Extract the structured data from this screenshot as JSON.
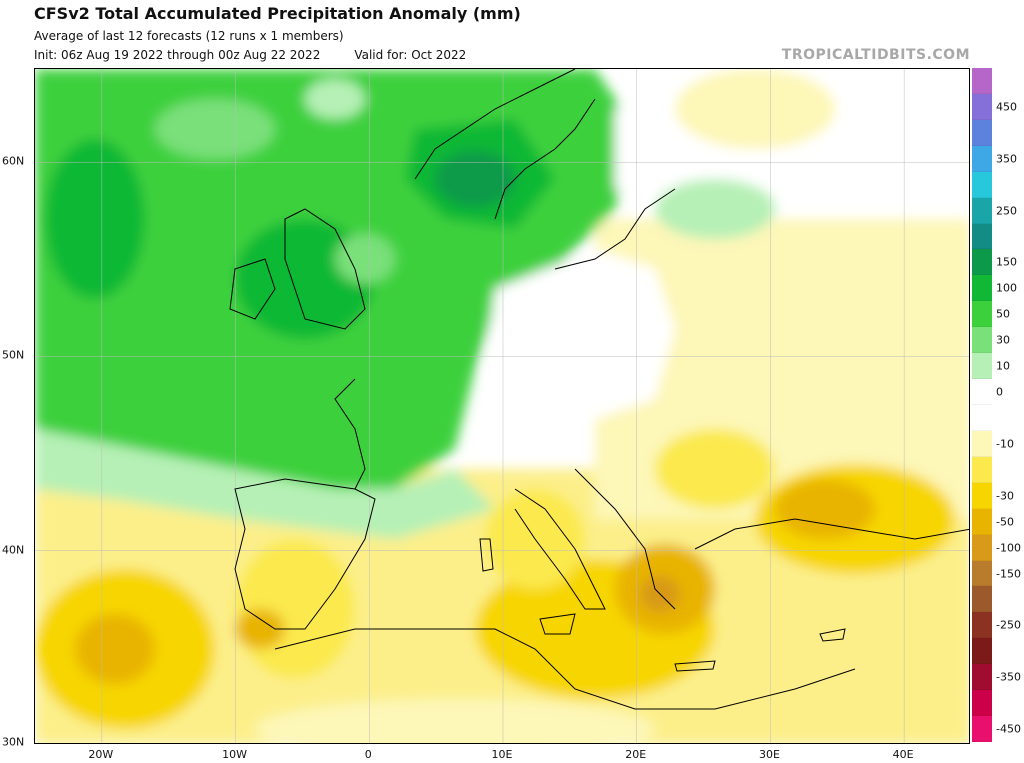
{
  "header": {
    "title": "CFSv2 Total Accumulated Precipitation Anomaly (mm)",
    "subtitle": "Average of last 12 forecasts (12 runs x 1 members)",
    "init": "Init: 06z Aug 19 2022 through 00z Aug 22 2022",
    "valid": "Valid for: Oct 2022",
    "brand": "TROPICALTIDBITS.COM"
  },
  "map": {
    "projection": "equirectangular",
    "lon_range": [
      -25,
      45
    ],
    "lat_range": [
      30,
      64.8
    ],
    "lat_ticks": [
      {
        "value": 60,
        "label": "60N"
      },
      {
        "value": 50,
        "label": "50N"
      },
      {
        "value": 40,
        "label": "40N"
      },
      {
        "value": 30,
        "label": "30N"
      }
    ],
    "lon_ticks": [
      {
        "value": -20,
        "label": "20W"
      },
      {
        "value": -10,
        "label": "10W"
      },
      {
        "value": 0,
        "label": "0"
      },
      {
        "value": 10,
        "label": "10E"
      },
      {
        "value": 20,
        "label": "20E"
      },
      {
        "value": 30,
        "label": "30E"
      },
      {
        "value": 40,
        "label": "40E"
      }
    ]
  },
  "colorbar": {
    "labels": [
      "450",
      "350",
      "250",
      "150",
      "100",
      "50",
      "30",
      "10",
      "0",
      "-10",
      "-30",
      "-50",
      "-100",
      "-150",
      "-250",
      "-350",
      "-450"
    ],
    "colors": [
      "#b566c8",
      "#8470d8",
      "#5c82de",
      "#3ea8e6",
      "#28c8dc",
      "#1aa6a8",
      "#138c86",
      "#0c9a4a",
      "#10b836",
      "#3cd03c",
      "#7ae07a",
      "#b6f0b6",
      "#ffffff",
      "#ffffff",
      "#fdf7b8",
      "#fbe94e",
      "#f7d500",
      "#e8b400",
      "#d89a18",
      "#b87c2c",
      "#9c5a2c",
      "#8c3222",
      "#7c1a1a",
      "#a00c30",
      "#cc0048",
      "#e8106c"
    ]
  }
}
